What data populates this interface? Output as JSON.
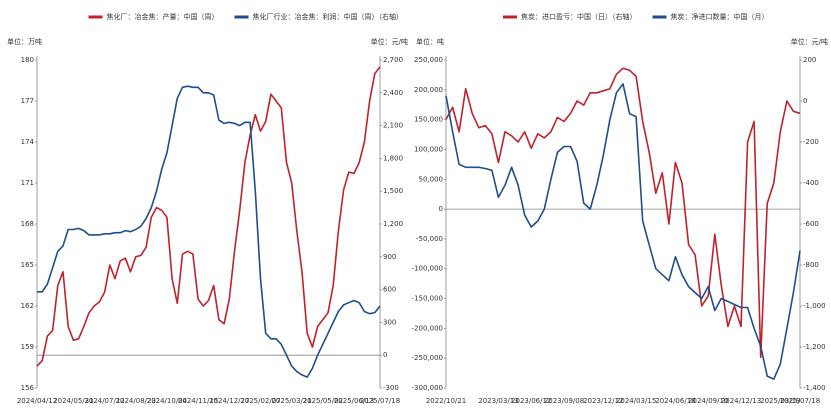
{
  "chart_data": [
    {
      "type": "line",
      "ylabel": "单位：万吨",
      "y2label": "单位：元/吨",
      "categories": [
        "2024/04/12",
        null,
        null,
        null,
        null,
        null,
        null,
        "2024/05/31",
        null,
        null,
        null,
        null,
        null,
        "2024/07/12",
        null,
        null,
        null,
        null,
        null,
        "2024/08/23",
        null,
        null,
        null,
        null,
        null,
        "2024/10/04",
        null,
        null,
        null,
        null,
        null,
        "2024/11/15",
        null,
        null,
        null,
        null,
        null,
        "2024/12/27",
        null,
        null,
        null,
        null,
        null,
        "2025/02/07",
        null,
        null,
        null,
        null,
        null,
        "2025/03/21",
        null,
        null,
        null,
        null,
        null,
        "2025/05/02",
        null,
        null,
        null,
        null,
        null,
        "2025/06/13",
        null,
        null,
        null,
        null,
        "2025/07/18"
      ],
      "series": [
        {
          "name": "焦化厂：冶金焦：产量：中国（周）",
          "color": "#c0222c",
          "axis": "y",
          "values": [
            157.6,
            158,
            159.8,
            160.2,
            163.5,
            164.5,
            160.5,
            159.5,
            159.6,
            160.5,
            161.5,
            162,
            162.3,
            163,
            165,
            164,
            165.3,
            165.5,
            164.5,
            165.6,
            165.7,
            166.3,
            168.5,
            169.2,
            169,
            168.5,
            164,
            162.2,
            165.8,
            166,
            165.8,
            162.5,
            162,
            162.4,
            163.5,
            161,
            160.7,
            162.5,
            166,
            169,
            172.5,
            174.5,
            176,
            174.8,
            175.5,
            177.5,
            177,
            176.5,
            172.5,
            171,
            167.5,
            164.5,
            160,
            159,
            160.5,
            161,
            161.5,
            163.5,
            167.5,
            170.5,
            171.8,
            171.7,
            172.5,
            174,
            177,
            179,
            179.5
          ]
        },
        {
          "name": "焦化厂行业：冶金焦：利润：中国（周）（右轴）",
          "color": "#1f4e8c",
          "axis": "y2",
          "values": [
            580,
            580,
            650,
            800,
            950,
            1000,
            1150,
            1150,
            1160,
            1140,
            1100,
            1100,
            1100,
            1110,
            1110,
            1120,
            1120,
            1140,
            1130,
            1150,
            1180,
            1250,
            1350,
            1500,
            1700,
            1850,
            2100,
            2350,
            2450,
            2460,
            2450,
            2450,
            2400,
            2400,
            2380,
            2150,
            2120,
            2130,
            2120,
            2100,
            2130,
            2130,
            1500,
            700,
            200,
            150,
            150,
            100,
            0,
            -100,
            -150,
            -180,
            -200,
            -120,
            0,
            100,
            200,
            300,
            400,
            460,
            480,
            500,
            480,
            400,
            380,
            390,
            450
          ]
        }
      ],
      "ylim": [
        156,
        180
      ],
      "yticks": [
        156,
        159,
        162,
        165,
        168,
        171,
        174,
        177,
        180
      ],
      "y2lim": [
        -300,
        2700
      ],
      "y2ticks": [
        -300,
        0,
        300,
        600,
        900,
        {
          "value": 1200,
          "label": "1,200"
        },
        {
          "value": 1500,
          "label": "1,500"
        },
        {
          "value": 1800,
          "label": "1,800"
        },
        {
          "value": 2100,
          "label": "2,100"
        },
        {
          "value": 2400,
          "label": "2,400"
        },
        {
          "value": 2700,
          "label": "2,700"
        }
      ],
      "zero_axis": "y2"
    },
    {
      "type": "line",
      "ylabel": "单位：吨",
      "y2label": "单位：元/吨",
      "categories": [
        "2022/10/21",
        null,
        null,
        null,
        null,
        null,
        null,
        null,
        "2023/03/13",
        null,
        null,
        null,
        null,
        "2023/06/12",
        null,
        null,
        null,
        null,
        "2023/09/08",
        null,
        null,
        null,
        null,
        null,
        "2023/12/12",
        null,
        null,
        null,
        null,
        "2024/03/15",
        null,
        null,
        null,
        null,
        null,
        "2024/06/18",
        null,
        null,
        null,
        null,
        "2024/09/10",
        null,
        null,
        null,
        null,
        "2024/12/13",
        null,
        null,
        null,
        null,
        null,
        "2025/03/19",
        null,
        null,
        "2025/07/18"
      ],
      "series": [
        {
          "name": "焦炭：进口盈亏：中国（日）（右轴）",
          "color": "#c0222c",
          "axis": "y2",
          "values": [
            -90,
            -30,
            -150,
            60,
            -60,
            -130,
            -120,
            -160,
            -300,
            -150,
            -170,
            -200,
            -150,
            -230,
            -160,
            -180,
            -150,
            -80,
            -100,
            -60,
            0,
            -20,
            40,
            40,
            50,
            60,
            130,
            160,
            150,
            120,
            -100,
            -250,
            -450,
            -350,
            -600,
            -300,
            -400,
            -700,
            -750,
            -1000,
            -950,
            -650,
            -900,
            -1100,
            -1000,
            -1100,
            -200,
            -100,
            -1250,
            -500,
            -400,
            -150,
            0,
            -50,
            -60
          ]
        },
        {
          "name": "焦炭：净进口数量：中国（月）",
          "color": "#1f4e8c",
          "axis": "y",
          "values": [
            190000,
            130000,
            75000,
            70000,
            70000,
            70000,
            68000,
            65000,
            20000,
            40000,
            70000,
            40000,
            -10000,
            -30000,
            -20000,
            0,
            50000,
            95000,
            105000,
            105000,
            80000,
            10000,
            0,
            40000,
            90000,
            150000,
            195000,
            210000,
            160000,
            155000,
            -20000,
            -60000,
            -100000,
            -110000,
            -120000,
            -80000,
            -110000,
            -130000,
            -140000,
            -150000,
            -130000,
            -170000,
            -150000,
            -155000,
            -160000,
            -165000,
            -165000,
            -200000,
            -230000,
            -280000,
            -285000,
            -260000,
            -200000,
            -140000,
            -70000
          ]
        }
      ],
      "ylim": [
        -300000,
        250000
      ],
      "yticks": [
        {
          "value": -300000,
          "label": "-300,000"
        },
        {
          "value": -250000,
          "label": "-250,000"
        },
        {
          "value": -200000,
          "label": "-200,000"
        },
        {
          "value": -150000,
          "label": "-150,000"
        },
        {
          "value": -100000,
          "label": "-100,000"
        },
        {
          "value": -50000,
          "label": "-50,000"
        },
        0,
        {
          "value": 50000,
          "label": "50,000"
        },
        {
          "value": 100000,
          "label": "100,000"
        },
        {
          "value": 150000,
          "label": "150,000"
        },
        {
          "value": 200000,
          "label": "200,000"
        },
        {
          "value": 250000,
          "label": "250,000"
        }
      ],
      "y2lim": [
        -1400,
        200
      ],
      "y2ticks": [
        {
          "value": -1400,
          "label": "-1,400"
        },
        {
          "value": -1200,
          "label": "-1,200"
        },
        {
          "value": -1000,
          "label": "-1,000"
        },
        -800,
        -600,
        -400,
        -200,
        0,
        200
      ],
      "zero_axis": "y"
    }
  ]
}
